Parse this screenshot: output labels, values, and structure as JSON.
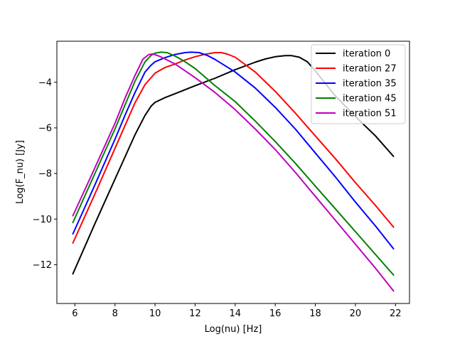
{
  "chart_data": {
    "type": "line",
    "xlabel": "Log(nu) [Hz]",
    "ylabel": "Log(F_nu) [Jy]",
    "xlim": [
      5.1,
      22.7
    ],
    "ylim": [
      -13.7,
      -2.2
    ],
    "xticks": [
      6,
      8,
      10,
      12,
      14,
      16,
      18,
      20,
      22
    ],
    "yticks": [
      -12,
      -10,
      -8,
      -6,
      -4
    ],
    "xtick_labels": [
      "6",
      "8",
      "10",
      "12",
      "14",
      "16",
      "18",
      "20",
      "22"
    ],
    "ytick_labels": [
      "−12",
      "−10",
      "−8",
      "−6",
      "−4"
    ],
    "grid": false,
    "legend_position": "top-right",
    "series": [
      {
        "name": "iteration 0",
        "color": "#000000",
        "x": [
          5.9,
          7.0,
          8.0,
          9.0,
          9.5,
          9.8,
          10.0,
          10.5,
          11.0,
          12.0,
          13.0,
          14.0,
          15.0,
          15.5,
          16.0,
          16.5,
          16.8,
          17.2,
          17.6,
          18.0,
          18.5,
          19.0,
          20.0,
          21.0,
          21.9
        ],
        "y": [
          -12.4,
          -10.2,
          -8.25,
          -6.3,
          -5.45,
          -5.05,
          -4.88,
          -4.67,
          -4.5,
          -4.15,
          -3.82,
          -3.45,
          -3.12,
          -2.98,
          -2.88,
          -2.83,
          -2.83,
          -2.9,
          -3.1,
          -3.5,
          -4.05,
          -4.6,
          -5.5,
          -6.35,
          -7.25
        ]
      },
      {
        "name": "iteration 27",
        "color": "#ff0000",
        "x": [
          5.9,
          7.0,
          8.0,
          8.5,
          9.0,
          9.5,
          10.0,
          10.5,
          11.0,
          11.5,
          12.0,
          12.5,
          13.0,
          13.3,
          13.6,
          14.0,
          15.0,
          16.0,
          17.0,
          18.0,
          19.0,
          20.0,
          21.0,
          21.9
        ],
        "y": [
          -11.05,
          -8.9,
          -6.9,
          -5.9,
          -4.9,
          -4.1,
          -3.6,
          -3.35,
          -3.2,
          -3.02,
          -2.88,
          -2.77,
          -2.7,
          -2.7,
          -2.76,
          -2.9,
          -3.55,
          -4.4,
          -5.35,
          -6.35,
          -7.35,
          -8.4,
          -9.4,
          -10.35
        ]
      },
      {
        "name": "iteration 35",
        "color": "#0000ff",
        "x": [
          5.9,
          7.0,
          8.0,
          8.5,
          9.0,
          9.5,
          9.8,
          10.0,
          10.5,
          11.0,
          11.5,
          11.8,
          12.2,
          12.6,
          13.0,
          14.0,
          15.0,
          16.0,
          17.0,
          18.0,
          19.0,
          20.0,
          21.0,
          21.9
        ],
        "y": [
          -10.65,
          -8.5,
          -6.5,
          -5.45,
          -4.45,
          -3.55,
          -3.25,
          -3.1,
          -2.92,
          -2.78,
          -2.7,
          -2.68,
          -2.7,
          -2.82,
          -3.0,
          -3.55,
          -4.25,
          -5.1,
          -6.05,
          -7.1,
          -8.15,
          -9.25,
          -10.3,
          -11.3
        ]
      },
      {
        "name": "iteration 45",
        "color": "#008000",
        "x": [
          5.9,
          7.0,
          8.0,
          8.5,
          9.0,
          9.5,
          9.8,
          10.0,
          10.3,
          10.6,
          11.0,
          11.5,
          12.0,
          13.0,
          14.0,
          15.0,
          16.0,
          17.0,
          18.0,
          19.0,
          20.0,
          21.0,
          21.9
        ],
        "y": [
          -10.15,
          -8.0,
          -6.05,
          -5.0,
          -3.95,
          -3.1,
          -2.82,
          -2.72,
          -2.68,
          -2.7,
          -2.85,
          -3.1,
          -3.4,
          -4.15,
          -4.85,
          -5.7,
          -6.6,
          -7.55,
          -8.55,
          -9.55,
          -10.55,
          -11.55,
          -12.45
        ]
      },
      {
        "name": "iteration 51",
        "color": "#bf00bf",
        "x": [
          5.9,
          7.0,
          8.0,
          8.5,
          9.0,
          9.4,
          9.7,
          9.9,
          10.2,
          10.6,
          11.0,
          11.5,
          12.0,
          13.0,
          14.0,
          15.0,
          16.0,
          17.0,
          18.0,
          19.0,
          20.0,
          21.0,
          21.9
        ],
        "y": [
          -9.85,
          -7.75,
          -5.8,
          -4.7,
          -3.7,
          -2.98,
          -2.78,
          -2.76,
          -2.85,
          -3.02,
          -3.2,
          -3.5,
          -3.8,
          -4.45,
          -5.2,
          -6.05,
          -6.95,
          -7.95,
          -9.0,
          -10.05,
          -11.1,
          -12.15,
          -13.15
        ]
      }
    ]
  }
}
